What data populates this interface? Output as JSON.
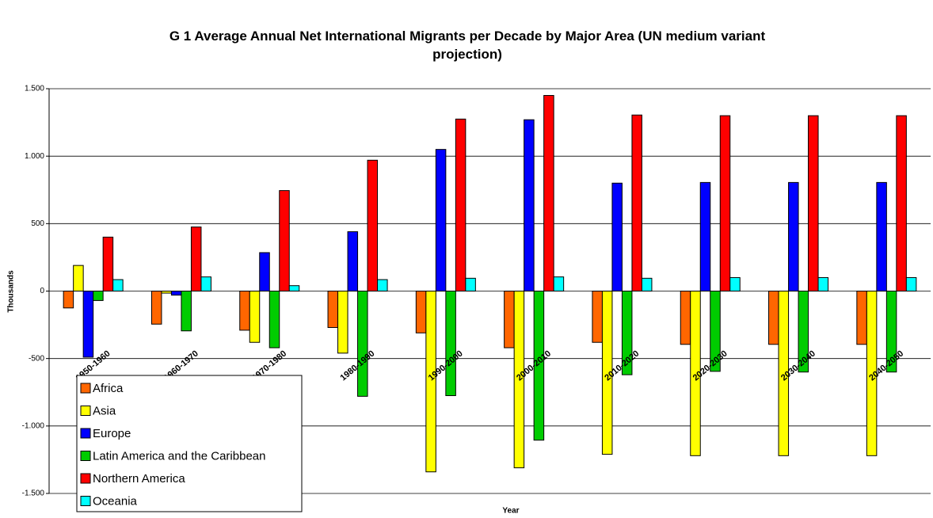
{
  "chart_data": {
    "type": "bar",
    "title": "G 1 Average Annual Net International Migrants per Decade by Major Area (UN medium variant projection)",
    "x_label": "Year",
    "y_label": "Thousands",
    "categories": [
      "1950-1960",
      "1960-1970",
      "1970-1980",
      "1980-1990",
      "1990-2000",
      "2000-2010",
      "2010-2020",
      "2020-2030",
      "2030-2040",
      "2040-2050"
    ],
    "series": [
      {
        "name": "Africa",
        "color": "#ff6600",
        "values": [
          -125,
          -245,
          -290,
          -270,
          -310,
          -420,
          -380,
          -395,
          -395,
          -395
        ]
      },
      {
        "name": "Asia",
        "color": "#ffff00",
        "values": [
          190,
          -15,
          -380,
          -460,
          -1340,
          -1310,
          -1210,
          -1220,
          -1220,
          -1220
        ]
      },
      {
        "name": "Europe",
        "color": "#0000ff",
        "values": [
          -490,
          -30,
          285,
          440,
          1050,
          1270,
          800,
          805,
          805,
          805
        ]
      },
      {
        "name": "Latin America and the Caribbean",
        "color": "#00cc00",
        "values": [
          -70,
          -295,
          -420,
          -780,
          -775,
          -1105,
          -620,
          -595,
          -600,
          -600
        ]
      },
      {
        "name": "Northern America",
        "color": "#ff0000",
        "values": [
          400,
          475,
          745,
          970,
          1275,
          1450,
          1305,
          1300,
          1300,
          1300
        ]
      },
      {
        "name": "Oceania",
        "color": "#00ffff",
        "values": [
          85,
          105,
          40,
          85,
          95,
          105,
          95,
          100,
          100,
          100
        ]
      }
    ],
    "ylim": [
      -1500,
      1500
    ],
    "yticks": [
      {
        "value": -1500,
        "label": "-1.500"
      },
      {
        "value": -1000,
        "label": "-1.000"
      },
      -500,
      0,
      500,
      {
        "value": 1000,
        "label": "1.000"
      },
      {
        "value": 1500,
        "label": "1.500"
      }
    ],
    "grid": true,
    "legend": "lower left"
  }
}
